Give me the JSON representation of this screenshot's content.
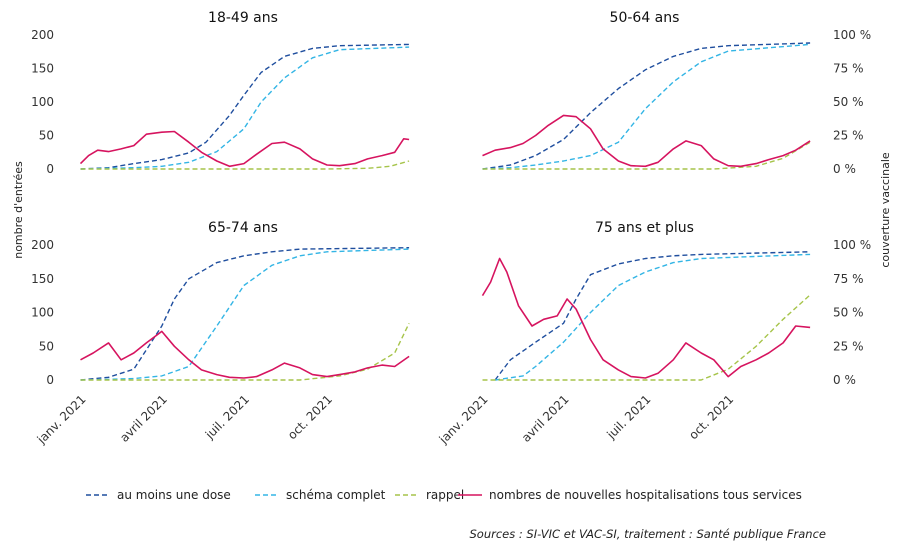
{
  "colors": {
    "dose1": "#1f4e9e",
    "complete": "#33b5e5",
    "rappel": "#a6c44a",
    "hosp": "#d6145f"
  },
  "figure": {
    "left_axis_label": "nombre d'entrées",
    "right_axis_label": "couverture vaccinale",
    "source": "Sources : SI-VIC et VAC-SI, traitement : Santé publique France"
  },
  "legend": [
    {
      "label": "au moins une dose",
      "series": "dose1",
      "style": "dashed"
    },
    {
      "label": "schéma complet",
      "series": "complete",
      "style": "dashed"
    },
    {
      "label": "rappel",
      "series": "rappel",
      "style": "dashed"
    },
    {
      "label": "nombres de nouvelles hospitalisations tous services",
      "series": "hosp",
      "style": "solid"
    }
  ],
  "chart_data": [
    {
      "type": "line",
      "title": "18-49 ans",
      "x_range": [
        "2020-12-27",
        "2022-01-01"
      ],
      "ylim": [
        0,
        200
      ],
      "y2lim": [
        0,
        100
      ],
      "y_ticks": [
        "0",
        "50",
        "100",
        "150",
        "200"
      ],
      "y2_ticks": [
        "0 %",
        "25 %",
        "50 %",
        "75 %",
        "100 %"
      ],
      "x_ticks": [
        "janv. 2021",
        "avril 2021",
        "juil. 2021",
        "oct. 2021"
      ],
      "x_tick_dates": [
        "2021-01-01",
        "2021-04-01",
        "2021-07-01",
        "2021-10-01"
      ],
      "series": [
        {
          "name": "au moins une dose",
          "key": "dose1",
          "axis": "right",
          "x": [
            "2021-01-01",
            "2021-02-01",
            "2021-03-01",
            "2021-04-01",
            "2021-05-01",
            "2021-05-20",
            "2021-06-15",
            "2021-07-01",
            "2021-07-20",
            "2021-08-15",
            "2021-09-15",
            "2021-10-15",
            "2021-12-31"
          ],
          "y": [
            0,
            1,
            4,
            7,
            12,
            20,
            40,
            55,
            72,
            84,
            90,
            92,
            93
          ]
        },
        {
          "name": "schéma complet",
          "key": "complete",
          "axis": "right",
          "x": [
            "2021-01-01",
            "2021-02-01",
            "2021-03-01",
            "2021-04-01",
            "2021-05-01",
            "2021-06-01",
            "2021-07-01",
            "2021-07-20",
            "2021-08-15",
            "2021-09-15",
            "2021-10-15",
            "2021-12-31"
          ],
          "y": [
            0,
            0.5,
            1,
            2,
            5,
            13,
            30,
            50,
            68,
            83,
            89,
            91
          ]
        },
        {
          "name": "rappel",
          "key": "rappel",
          "axis": "right",
          "x": [
            "2021-01-01",
            "2021-10-01",
            "2021-11-15",
            "2021-12-10",
            "2021-12-31"
          ],
          "y": [
            0,
            0,
            0.5,
            2,
            6
          ]
        },
        {
          "name": "nombres de nouvelles hospitalisations tous services",
          "key": "hosp",
          "axis": "left",
          "x": [
            "2021-01-01",
            "2021-01-10",
            "2021-01-20",
            "2021-02-01",
            "2021-02-15",
            "2021-03-01",
            "2021-03-15",
            "2021-04-01",
            "2021-04-15",
            "2021-05-01",
            "2021-05-15",
            "2021-06-01",
            "2021-06-15",
            "2021-07-01",
            "2021-07-15",
            "2021-08-01",
            "2021-08-15",
            "2021-09-01",
            "2021-09-15",
            "2021-10-01",
            "2021-10-15",
            "2021-11-01",
            "2021-11-15",
            "2021-12-01",
            "2021-12-15",
            "2021-12-25",
            "2021-12-31"
          ],
          "y": [
            8,
            20,
            28,
            26,
            30,
            35,
            52,
            55,
            56,
            40,
            25,
            12,
            4,
            8,
            22,
            38,
            40,
            30,
            15,
            6,
            5,
            8,
            15,
            20,
            25,
            45,
            44
          ]
        }
      ]
    },
    {
      "type": "line",
      "title": "50-64 ans",
      "x_range": [
        "2020-12-27",
        "2022-01-01"
      ],
      "ylim": [
        0,
        200
      ],
      "y2lim": [
        0,
        100
      ],
      "y_ticks": [
        "0",
        "50",
        "100",
        "150",
        "200"
      ],
      "y2_ticks": [
        "0 %",
        "25 %",
        "50 %",
        "75 %",
        "100 %"
      ],
      "x_ticks": [
        "janv. 2021",
        "avril 2021",
        "juil. 2021",
        "oct. 2021"
      ],
      "x_tick_dates": [
        "2021-01-01",
        "2021-04-01",
        "2021-07-01",
        "2021-10-01"
      ],
      "series": [
        {
          "name": "au moins une dose",
          "key": "dose1",
          "axis": "right",
          "x": [
            "2021-01-01",
            "2021-02-01",
            "2021-03-01",
            "2021-04-01",
            "2021-05-01",
            "2021-06-01",
            "2021-07-01",
            "2021-08-01",
            "2021-09-01",
            "2021-10-01",
            "2021-12-31"
          ],
          "y": [
            0,
            3,
            10,
            22,
            42,
            60,
            74,
            84,
            90,
            92,
            94
          ]
        },
        {
          "name": "schéma complet",
          "key": "complete",
          "axis": "right",
          "x": [
            "2021-01-01",
            "2021-02-01",
            "2021-03-01",
            "2021-04-01",
            "2021-05-01",
            "2021-06-01",
            "2021-07-01",
            "2021-08-01",
            "2021-09-01",
            "2021-10-01",
            "2021-12-31"
          ],
          "y": [
            0,
            1,
            3,
            6,
            10,
            20,
            45,
            65,
            80,
            88,
            93
          ]
        },
        {
          "name": "rappel",
          "key": "rappel",
          "axis": "right",
          "x": [
            "2021-01-01",
            "2021-09-15",
            "2021-11-01",
            "2021-12-01",
            "2021-12-31"
          ],
          "y": [
            0,
            0,
            2,
            8,
            20
          ]
        },
        {
          "name": "nombres de nouvelles hospitalisations tous services",
          "key": "hosp",
          "axis": "left",
          "x": [
            "2021-01-01",
            "2021-01-15",
            "2021-02-01",
            "2021-02-15",
            "2021-03-01",
            "2021-03-15",
            "2021-04-01",
            "2021-04-15",
            "2021-05-01",
            "2021-05-15",
            "2021-06-01",
            "2021-06-15",
            "2021-07-01",
            "2021-07-15",
            "2021-08-01",
            "2021-08-15",
            "2021-09-01",
            "2021-09-15",
            "2021-10-01",
            "2021-10-15",
            "2021-11-01",
            "2021-11-15",
            "2021-12-01",
            "2021-12-15",
            "2021-12-31"
          ],
          "y": [
            20,
            28,
            32,
            38,
            50,
            65,
            80,
            78,
            60,
            30,
            12,
            5,
            4,
            10,
            30,
            42,
            35,
            15,
            5,
            4,
            8,
            14,
            20,
            28,
            42
          ]
        }
      ]
    },
    {
      "type": "line",
      "title": "65-74 ans",
      "x_range": [
        "2020-12-27",
        "2022-01-01"
      ],
      "ylim": [
        0,
        200
      ],
      "y2lim": [
        0,
        100
      ],
      "y_ticks": [
        "0",
        "50",
        "100",
        "150",
        "200"
      ],
      "y2_ticks": [
        "0 %",
        "25 %",
        "50 %",
        "75 %",
        "100 %"
      ],
      "x_ticks": [
        "janv. 2021",
        "avril 2021",
        "juil. 2021",
        "oct. 2021"
      ],
      "x_tick_dates": [
        "2021-01-01",
        "2021-04-01",
        "2021-07-01",
        "2021-10-01"
      ],
      "series": [
        {
          "name": "au moins une dose",
          "key": "dose1",
          "axis": "right",
          "x": [
            "2021-01-01",
            "2021-02-01",
            "2021-03-01",
            "2021-04-01",
            "2021-04-15",
            "2021-05-01",
            "2021-06-01",
            "2021-07-01",
            "2021-08-01",
            "2021-09-01",
            "2021-12-31"
          ],
          "y": [
            0,
            2,
            8,
            40,
            60,
            75,
            87,
            92,
            95,
            97,
            98
          ]
        },
        {
          "name": "schéma complet",
          "key": "complete",
          "axis": "right",
          "x": [
            "2021-01-01",
            "2021-02-01",
            "2021-03-01",
            "2021-04-01",
            "2021-05-01",
            "2021-06-01",
            "2021-07-01",
            "2021-08-01",
            "2021-09-01",
            "2021-10-01",
            "2021-12-31"
          ],
          "y": [
            0,
            0.5,
            1,
            3,
            10,
            40,
            70,
            85,
            92,
            95,
            97
          ]
        },
        {
          "name": "rappel",
          "key": "rappel",
          "axis": "right",
          "x": [
            "2021-01-01",
            "2021-09-01",
            "2021-10-15",
            "2021-11-15",
            "2021-12-15",
            "2021-12-31"
          ],
          "y": [
            0,
            0,
            3,
            8,
            20,
            42
          ]
        },
        {
          "name": "nombres de nouvelles hospitalisations tous services",
          "key": "hosp",
          "axis": "left",
          "x": [
            "2021-01-01",
            "2021-01-15",
            "2021-02-01",
            "2021-02-15",
            "2021-03-01",
            "2021-03-15",
            "2021-04-01",
            "2021-04-15",
            "2021-05-01",
            "2021-05-15",
            "2021-06-01",
            "2021-06-15",
            "2021-07-01",
            "2021-07-15",
            "2021-08-01",
            "2021-08-15",
            "2021-09-01",
            "2021-09-15",
            "2021-10-01",
            "2021-10-15",
            "2021-11-01",
            "2021-11-15",
            "2021-12-01",
            "2021-12-15",
            "2021-12-31"
          ],
          "y": [
            30,
            40,
            55,
            30,
            40,
            55,
            72,
            50,
            30,
            15,
            8,
            4,
            3,
            5,
            15,
            25,
            18,
            8,
            5,
            8,
            12,
            18,
            22,
            20,
            35
          ]
        }
      ]
    },
    {
      "type": "line",
      "title": "75 ans et plus",
      "x_range": [
        "2020-12-27",
        "2022-01-01"
      ],
      "ylim": [
        0,
        200
      ],
      "y2lim": [
        0,
        100
      ],
      "y_ticks": [
        "0",
        "50",
        "100",
        "150",
        "200"
      ],
      "y2_ticks": [
        "0 %",
        "25 %",
        "50 %",
        "75 %",
        "100 %"
      ],
      "x_ticks": [
        "janv. 2021",
        "avril 2021",
        "juil. 2021",
        "oct. 2021"
      ],
      "x_tick_dates": [
        "2021-01-01",
        "2021-04-01",
        "2021-07-01",
        "2021-10-01"
      ],
      "series": [
        {
          "name": "au moins une dose",
          "key": "dose1",
          "axis": "right",
          "x": [
            "2021-01-15",
            "2021-02-01",
            "2021-03-01",
            "2021-04-01",
            "2021-04-15",
            "2021-05-01",
            "2021-06-01",
            "2021-07-01",
            "2021-08-01",
            "2021-09-01",
            "2021-12-31"
          ],
          "y": [
            0,
            15,
            28,
            42,
            60,
            78,
            86,
            90,
            92,
            93,
            95
          ]
        },
        {
          "name": "schéma complet",
          "key": "complete",
          "axis": "right",
          "x": [
            "2021-01-15",
            "2021-02-15",
            "2021-03-01",
            "2021-04-01",
            "2021-05-01",
            "2021-06-01",
            "2021-07-01",
            "2021-08-01",
            "2021-09-01",
            "2021-12-31"
          ],
          "y": [
            0,
            3,
            10,
            28,
            50,
            70,
            80,
            87,
            90,
            93
          ]
        },
        {
          "name": "rappel",
          "key": "rappel",
          "axis": "right",
          "x": [
            "2021-01-01",
            "2021-09-01",
            "2021-10-01",
            "2021-11-01",
            "2021-12-01",
            "2021-12-31"
          ],
          "y": [
            0,
            0,
            8,
            25,
            45,
            63
          ]
        },
        {
          "name": "nombres de nouvelles hospitalisations tous services",
          "key": "hosp",
          "axis": "left",
          "x": [
            "2021-01-01",
            "2021-01-10",
            "2021-01-20",
            "2021-01-28",
            "2021-02-10",
            "2021-02-25",
            "2021-03-10",
            "2021-03-25",
            "2021-04-05",
            "2021-04-15",
            "2021-05-01",
            "2021-05-15",
            "2021-06-01",
            "2021-06-15",
            "2021-07-01",
            "2021-07-15",
            "2021-08-01",
            "2021-08-15",
            "2021-09-01",
            "2021-09-15",
            "2021-10-01",
            "2021-10-15",
            "2021-11-01",
            "2021-11-15",
            "2021-12-01",
            "2021-12-15",
            "2021-12-31"
          ],
          "y": [
            125,
            145,
            180,
            160,
            110,
            80,
            90,
            95,
            120,
            105,
            60,
            30,
            15,
            5,
            3,
            10,
            30,
            55,
            40,
            30,
            5,
            20,
            30,
            40,
            55,
            80,
            78
          ]
        }
      ]
    }
  ]
}
